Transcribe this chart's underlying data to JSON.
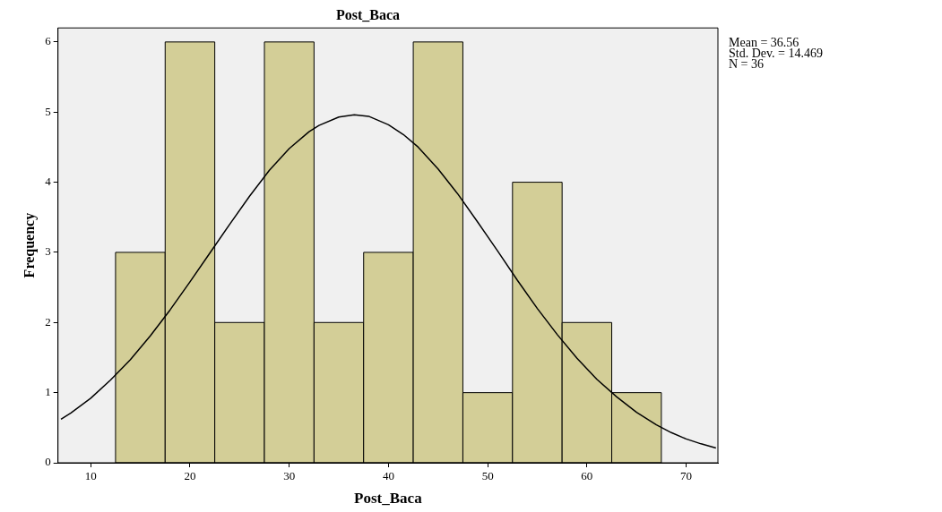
{
  "chart_data": {
    "type": "histogram",
    "title": "Post_Baca",
    "xlabel": "Post_Baca",
    "ylabel": "Frequency",
    "bins": [
      12.5,
      17.5,
      22.5,
      27.5,
      32.5,
      37.5,
      42.5,
      47.5,
      52.5,
      57.5,
      62.5,
      67.5
    ],
    "values": [
      3,
      6,
      2,
      6,
      2,
      3,
      6,
      1,
      4,
      2,
      1
    ],
    "color": "#d3ce97",
    "series": [
      {
        "type": "line",
        "color": "#000000",
        "x": [
          7,
          8,
          10,
          12,
          14,
          16,
          18,
          20,
          22,
          24,
          26,
          28,
          30,
          32,
          33,
          35,
          36.56,
          38,
          40,
          41.5,
          43,
          45,
          47,
          49,
          51,
          53,
          55,
          57,
          59,
          61,
          63,
          65,
          67,
          68.5,
          70,
          71.5,
          73
        ],
        "values": [
          0.62,
          0.71,
          0.92,
          1.18,
          1.47,
          1.81,
          2.18,
          2.58,
          2.99,
          3.4,
          3.8,
          4.17,
          4.48,
          4.72,
          4.81,
          4.93,
          4.96,
          4.94,
          4.82,
          4.68,
          4.5,
          4.19,
          3.83,
          3.43,
          3.02,
          2.6,
          2.2,
          1.83,
          1.49,
          1.19,
          0.94,
          0.72,
          0.54,
          0.43,
          0.34,
          0.27,
          0.21
        ]
      }
    ],
    "marker": "none",
    "xlim": [
      6.7,
      73.2
    ],
    "xticks": [
      10,
      20,
      30,
      40,
      50,
      60,
      70
    ],
    "ylim": [
      0,
      6.2
    ],
    "yticks": [
      0,
      1,
      2,
      3,
      4,
      5,
      6
    ],
    "grid": false,
    "legend": false,
    "annotations": [
      "Mean = 36.56",
      "Std. Dev. = 14.469",
      "N = 36"
    ]
  }
}
